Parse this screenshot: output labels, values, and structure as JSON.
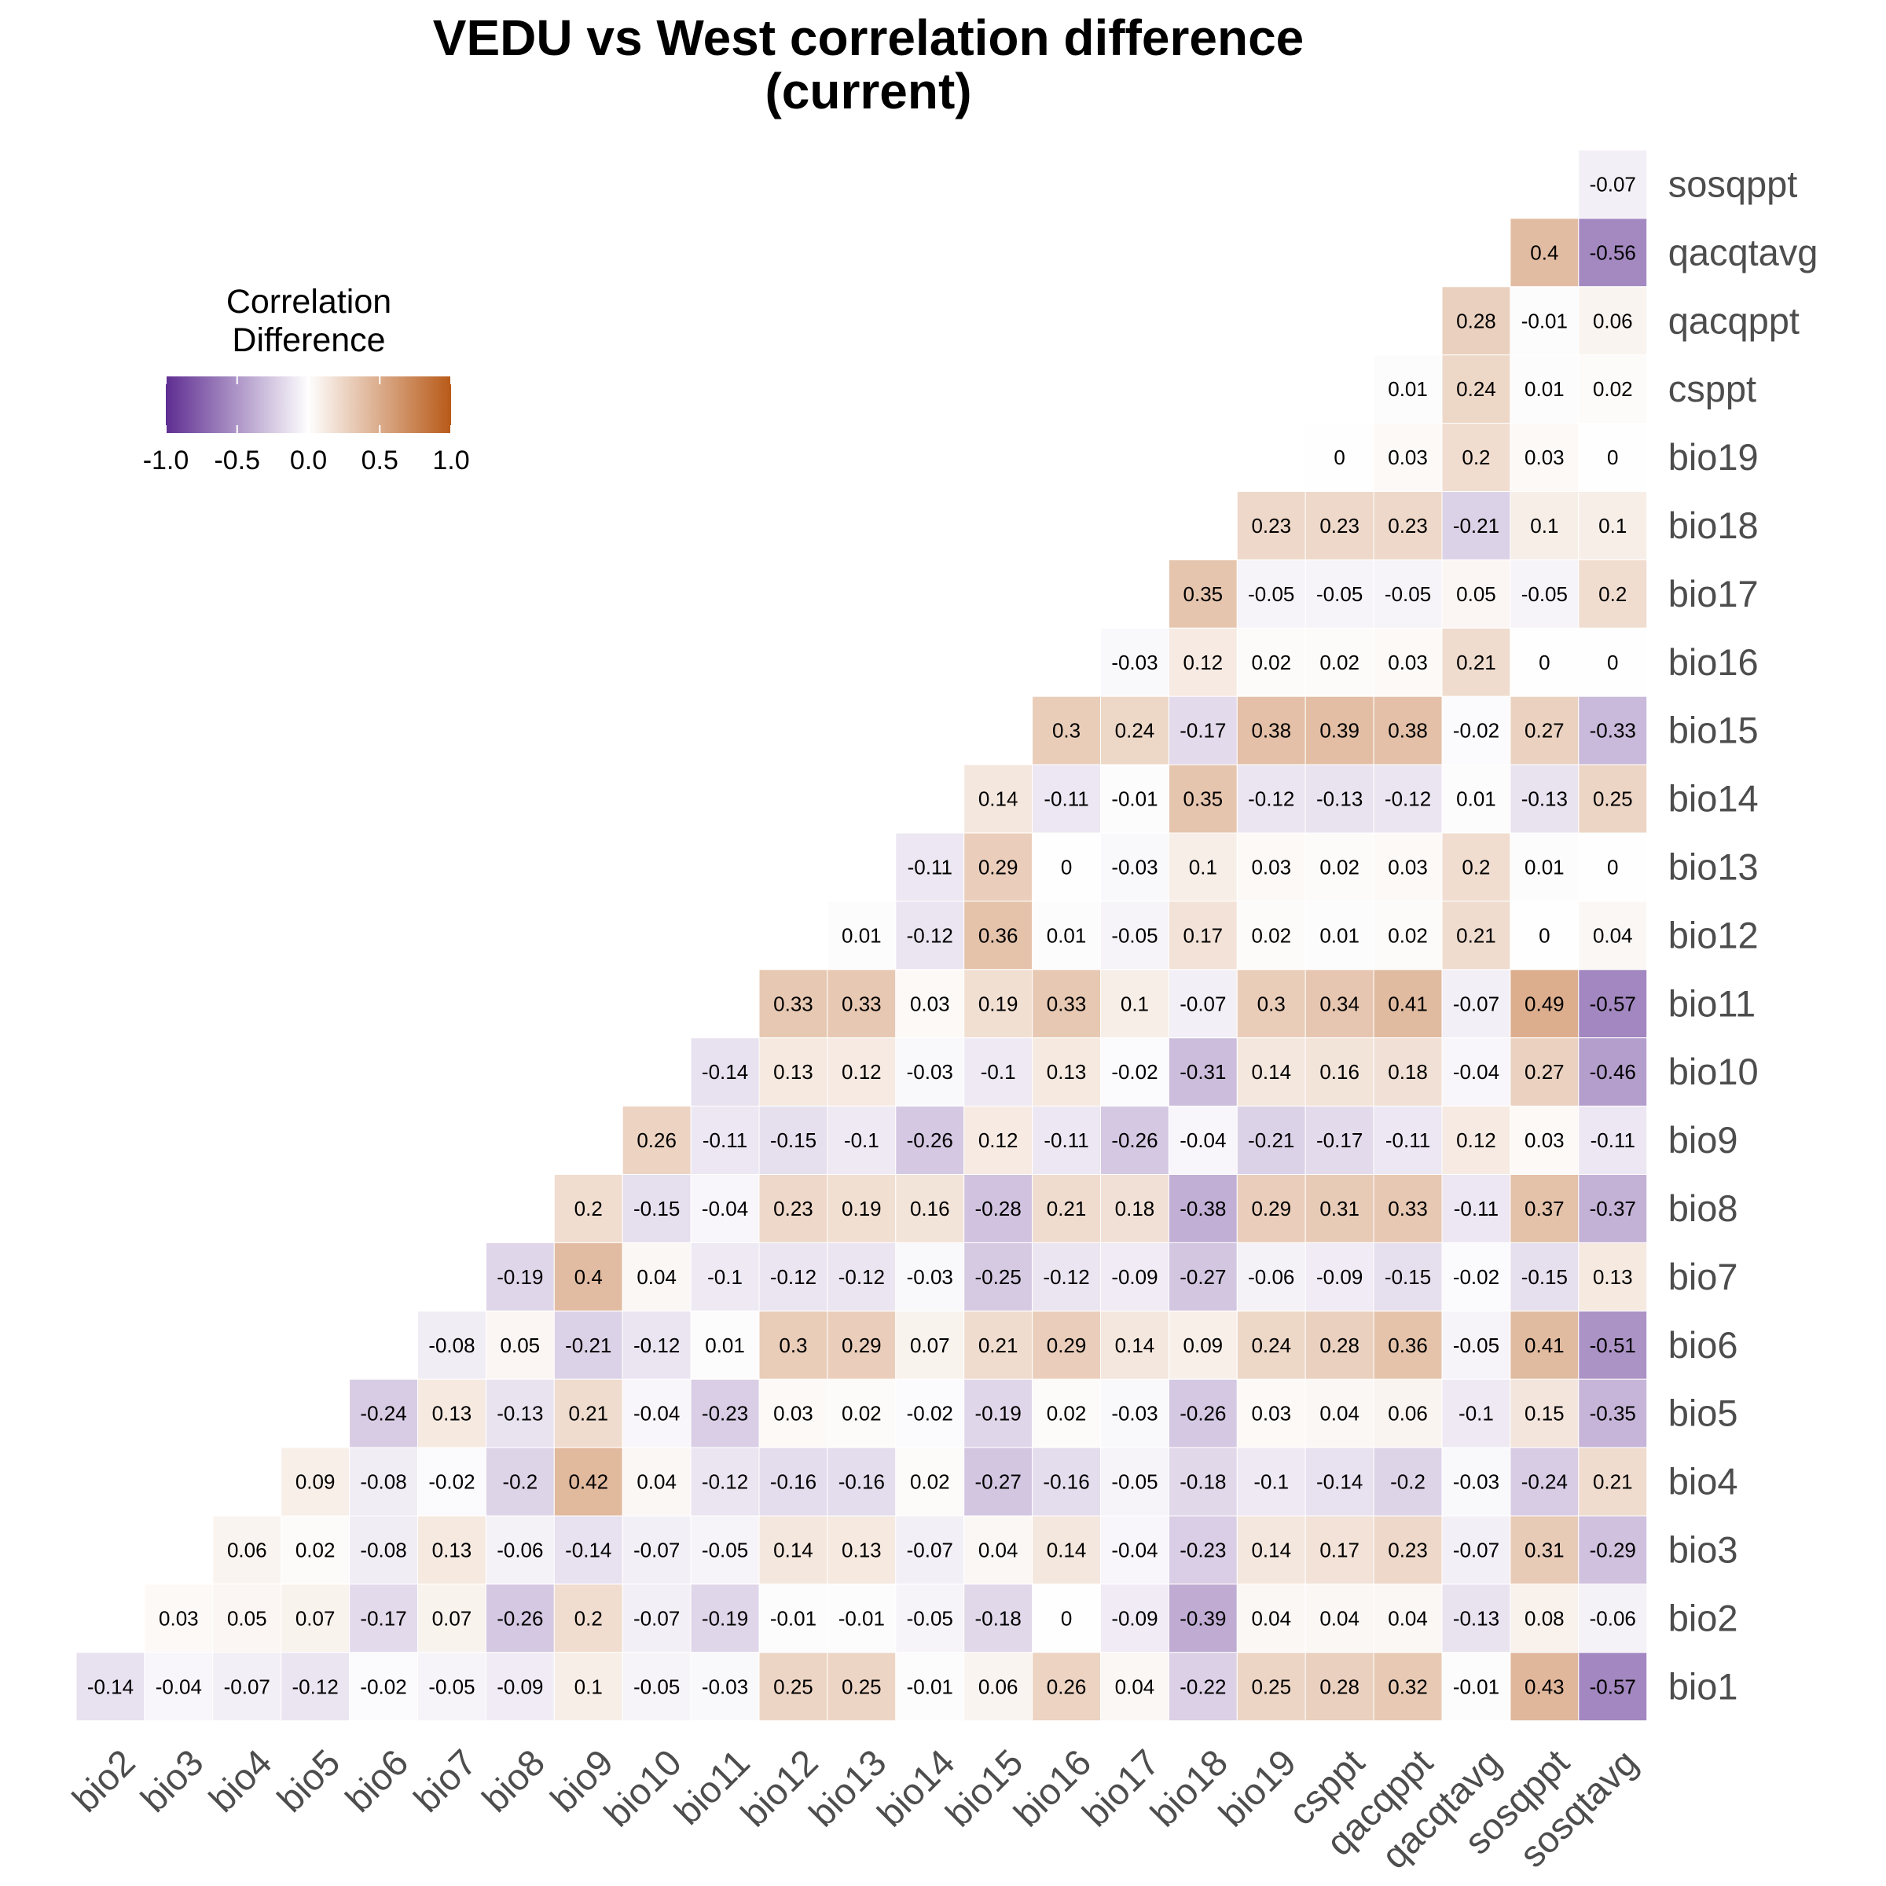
{
  "chart_data": {
    "type": "heatmap",
    "title": [
      "VEDU vs West correlation difference",
      "(current)"
    ],
    "x_labels": [
      "bio2",
      "bio3",
      "bio4",
      "bio5",
      "bio6",
      "bio7",
      "bio8",
      "bio9",
      "bio10",
      "bio11",
      "bio12",
      "bio13",
      "bio14",
      "bio15",
      "bio16",
      "bio17",
      "bio18",
      "bio19",
      "csppt",
      "qacqppt",
      "qacqtavg",
      "sosqppt",
      "sosqtavg"
    ],
    "y_labels": [
      "sosqppt",
      "qacqtavg",
      "qacqppt",
      "csppt",
      "bio19",
      "bio18",
      "bio17",
      "bio16",
      "bio15",
      "bio14",
      "bio13",
      "bio12",
      "bio11",
      "bio10",
      "bio9",
      "bio8",
      "bio7",
      "bio6",
      "bio5",
      "bio4",
      "bio3",
      "bio2",
      "bio1"
    ],
    "rows": [
      [
        null,
        null,
        null,
        null,
        null,
        null,
        null,
        null,
        null,
        null,
        null,
        null,
        null,
        null,
        null,
        null,
        null,
        null,
        null,
        null,
        null,
        null,
        -0.07
      ],
      [
        null,
        null,
        null,
        null,
        null,
        null,
        null,
        null,
        null,
        null,
        null,
        null,
        null,
        null,
        null,
        null,
        null,
        null,
        null,
        null,
        null,
        0.4,
        -0.56
      ],
      [
        null,
        null,
        null,
        null,
        null,
        null,
        null,
        null,
        null,
        null,
        null,
        null,
        null,
        null,
        null,
        null,
        null,
        null,
        null,
        null,
        0.28,
        -0.01,
        0.06
      ],
      [
        null,
        null,
        null,
        null,
        null,
        null,
        null,
        null,
        null,
        null,
        null,
        null,
        null,
        null,
        null,
        null,
        null,
        null,
        null,
        0.01,
        0.24,
        0.01,
        0.02
      ],
      [
        null,
        null,
        null,
        null,
        null,
        null,
        null,
        null,
        null,
        null,
        null,
        null,
        null,
        null,
        null,
        null,
        null,
        null,
        0,
        0.03,
        0.2,
        0.03,
        0
      ],
      [
        null,
        null,
        null,
        null,
        null,
        null,
        null,
        null,
        null,
        null,
        null,
        null,
        null,
        null,
        null,
        null,
        null,
        0.23,
        0.23,
        0.23,
        -0.21,
        0.1,
        0.1
      ],
      [
        null,
        null,
        null,
        null,
        null,
        null,
        null,
        null,
        null,
        null,
        null,
        null,
        null,
        null,
        null,
        null,
        0.35,
        -0.05,
        -0.05,
        -0.05,
        0.05,
        -0.05,
        0.2
      ],
      [
        null,
        null,
        null,
        null,
        null,
        null,
        null,
        null,
        null,
        null,
        null,
        null,
        null,
        null,
        null,
        -0.03,
        0.12,
        0.02,
        0.02,
        0.03,
        0.21,
        0,
        0
      ],
      [
        null,
        null,
        null,
        null,
        null,
        null,
        null,
        null,
        null,
        null,
        null,
        null,
        null,
        null,
        0.3,
        0.24,
        -0.17,
        0.38,
        0.39,
        0.38,
        -0.02,
        0.27,
        -0.33
      ],
      [
        null,
        null,
        null,
        null,
        null,
        null,
        null,
        null,
        null,
        null,
        null,
        null,
        null,
        0.14,
        -0.11,
        -0.01,
        0.35,
        -0.12,
        -0.13,
        -0.12,
        0.01,
        -0.13,
        0.25
      ],
      [
        null,
        null,
        null,
        null,
        null,
        null,
        null,
        null,
        null,
        null,
        null,
        null,
        -0.11,
        0.29,
        0,
        -0.03,
        0.1,
        0.03,
        0.02,
        0.03,
        0.2,
        0.01,
        0
      ],
      [
        null,
        null,
        null,
        null,
        null,
        null,
        null,
        null,
        null,
        null,
        null,
        0.01,
        -0.12,
        0.36,
        0.01,
        -0.05,
        0.17,
        0.02,
        0.01,
        0.02,
        0.21,
        0,
        0.04
      ],
      [
        null,
        null,
        null,
        null,
        null,
        null,
        null,
        null,
        null,
        null,
        0.33,
        0.33,
        0.03,
        0.19,
        0.33,
        0.1,
        -0.07,
        0.3,
        0.34,
        0.41,
        -0.07,
        0.49,
        -0.57
      ],
      [
        null,
        null,
        null,
        null,
        null,
        null,
        null,
        null,
        null,
        -0.14,
        0.13,
        0.12,
        -0.03,
        -0.1,
        0.13,
        -0.02,
        -0.31,
        0.14,
        0.16,
        0.18,
        -0.04,
        0.27,
        -0.46
      ],
      [
        null,
        null,
        null,
        null,
        null,
        null,
        null,
        null,
        0.26,
        -0.11,
        -0.15,
        -0.1,
        -0.26,
        0.12,
        -0.11,
        -0.26,
        -0.04,
        -0.21,
        -0.17,
        -0.11,
        0.12,
        0.03,
        -0.11
      ],
      [
        null,
        null,
        null,
        null,
        null,
        null,
        null,
        0.2,
        -0.15,
        -0.04,
        0.23,
        0.19,
        0.16,
        -0.28,
        0.21,
        0.18,
        -0.38,
        0.29,
        0.31,
        0.33,
        -0.11,
        0.37,
        -0.37
      ],
      [
        null,
        null,
        null,
        null,
        null,
        null,
        -0.19,
        0.4,
        0.04,
        -0.1,
        -0.12,
        -0.12,
        -0.03,
        -0.25,
        -0.12,
        -0.09,
        -0.27,
        -0.06,
        -0.09,
        -0.15,
        -0.02,
        -0.15,
        0.13
      ],
      [
        null,
        null,
        null,
        null,
        null,
        -0.08,
        0.05,
        -0.21,
        -0.12,
        0.01,
        0.3,
        0.29,
        0.07,
        0.21,
        0.29,
        0.14,
        0.09,
        0.24,
        0.28,
        0.36,
        -0.05,
        0.41,
        -0.51
      ],
      [
        null,
        null,
        null,
        null,
        -0.24,
        0.13,
        -0.13,
        0.21,
        -0.04,
        -0.23,
        0.03,
        0.02,
        -0.02,
        -0.19,
        0.02,
        -0.03,
        -0.26,
        0.03,
        0.04,
        0.06,
        -0.1,
        0.15,
        -0.35
      ],
      [
        null,
        null,
        null,
        0.09,
        -0.08,
        -0.02,
        -0.2,
        0.42,
        0.04,
        -0.12,
        -0.16,
        -0.16,
        0.02,
        -0.27,
        -0.16,
        -0.05,
        -0.18,
        -0.1,
        -0.14,
        -0.2,
        -0.03,
        -0.24,
        0.21
      ],
      [
        null,
        null,
        0.06,
        0.02,
        -0.08,
        0.13,
        -0.06,
        -0.14,
        -0.07,
        -0.05,
        0.14,
        0.13,
        -0.07,
        0.04,
        0.14,
        -0.04,
        -0.23,
        0.14,
        0.17,
        0.23,
        -0.07,
        0.31,
        -0.29
      ],
      [
        null,
        0.03,
        0.05,
        0.07,
        -0.17,
        0.07,
        -0.26,
        0.2,
        -0.07,
        -0.19,
        -0.01,
        -0.01,
        -0.05,
        -0.18,
        0,
        -0.09,
        -0.39,
        0.04,
        0.04,
        0.04,
        -0.13,
        0.08,
        -0.06
      ],
      [
        -0.14,
        -0.04,
        -0.07,
        -0.12,
        -0.02,
        -0.05,
        -0.09,
        0.1,
        -0.05,
        -0.03,
        0.25,
        0.25,
        -0.01,
        0.06,
        0.26,
        0.04,
        -0.22,
        0.25,
        0.28,
        0.32,
        -0.01,
        0.43,
        -0.57
      ]
    ],
    "legend": {
      "title": [
        "Correlation",
        "Difference"
      ],
      "ticks": [
        "-1.0",
        "-0.5",
        "0.0",
        "0.5",
        "1.0"
      ],
      "range": [
        -1,
        1
      ],
      "placement": "top-left"
    },
    "colors": {
      "low": "#5e2d91",
      "mid": "#fefefe",
      "high": "#b85a18"
    }
  }
}
